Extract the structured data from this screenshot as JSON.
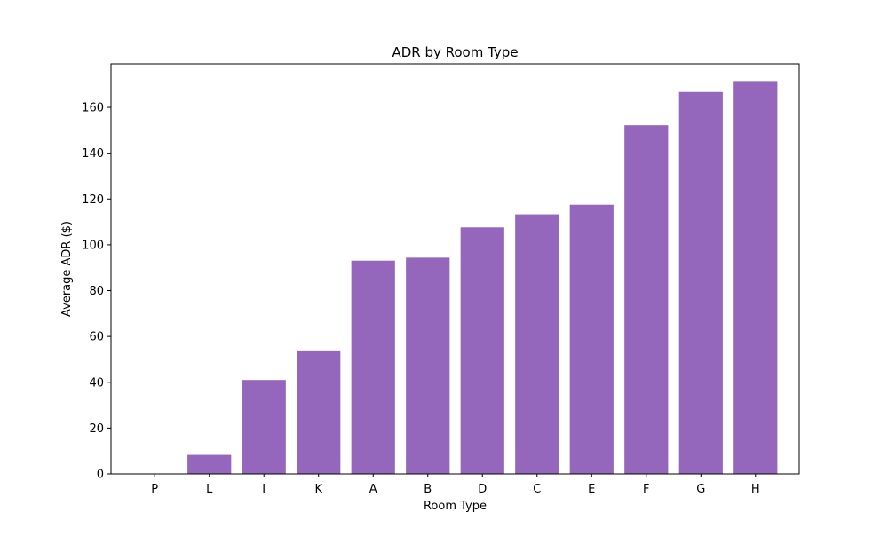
{
  "chart_data": {
    "type": "bar",
    "title": "ADR by Room Type",
    "xlabel": "Room Type",
    "ylabel": "Average ADR ($)",
    "categories": [
      "P",
      "L",
      "I",
      "K",
      "A",
      "B",
      "D",
      "C",
      "E",
      "F",
      "G",
      "H"
    ],
    "values": [
      0,
      8.3,
      41,
      53.9,
      93.1,
      94.4,
      107.6,
      113.3,
      117.5,
      152.2,
      166.7,
      171.5
    ],
    "ylim": [
      0,
      179
    ],
    "yticks": [
      0,
      20,
      40,
      60,
      80,
      100,
      120,
      140,
      160
    ],
    "grid": false,
    "legend": "none",
    "bar_color": "#9467bd"
  }
}
